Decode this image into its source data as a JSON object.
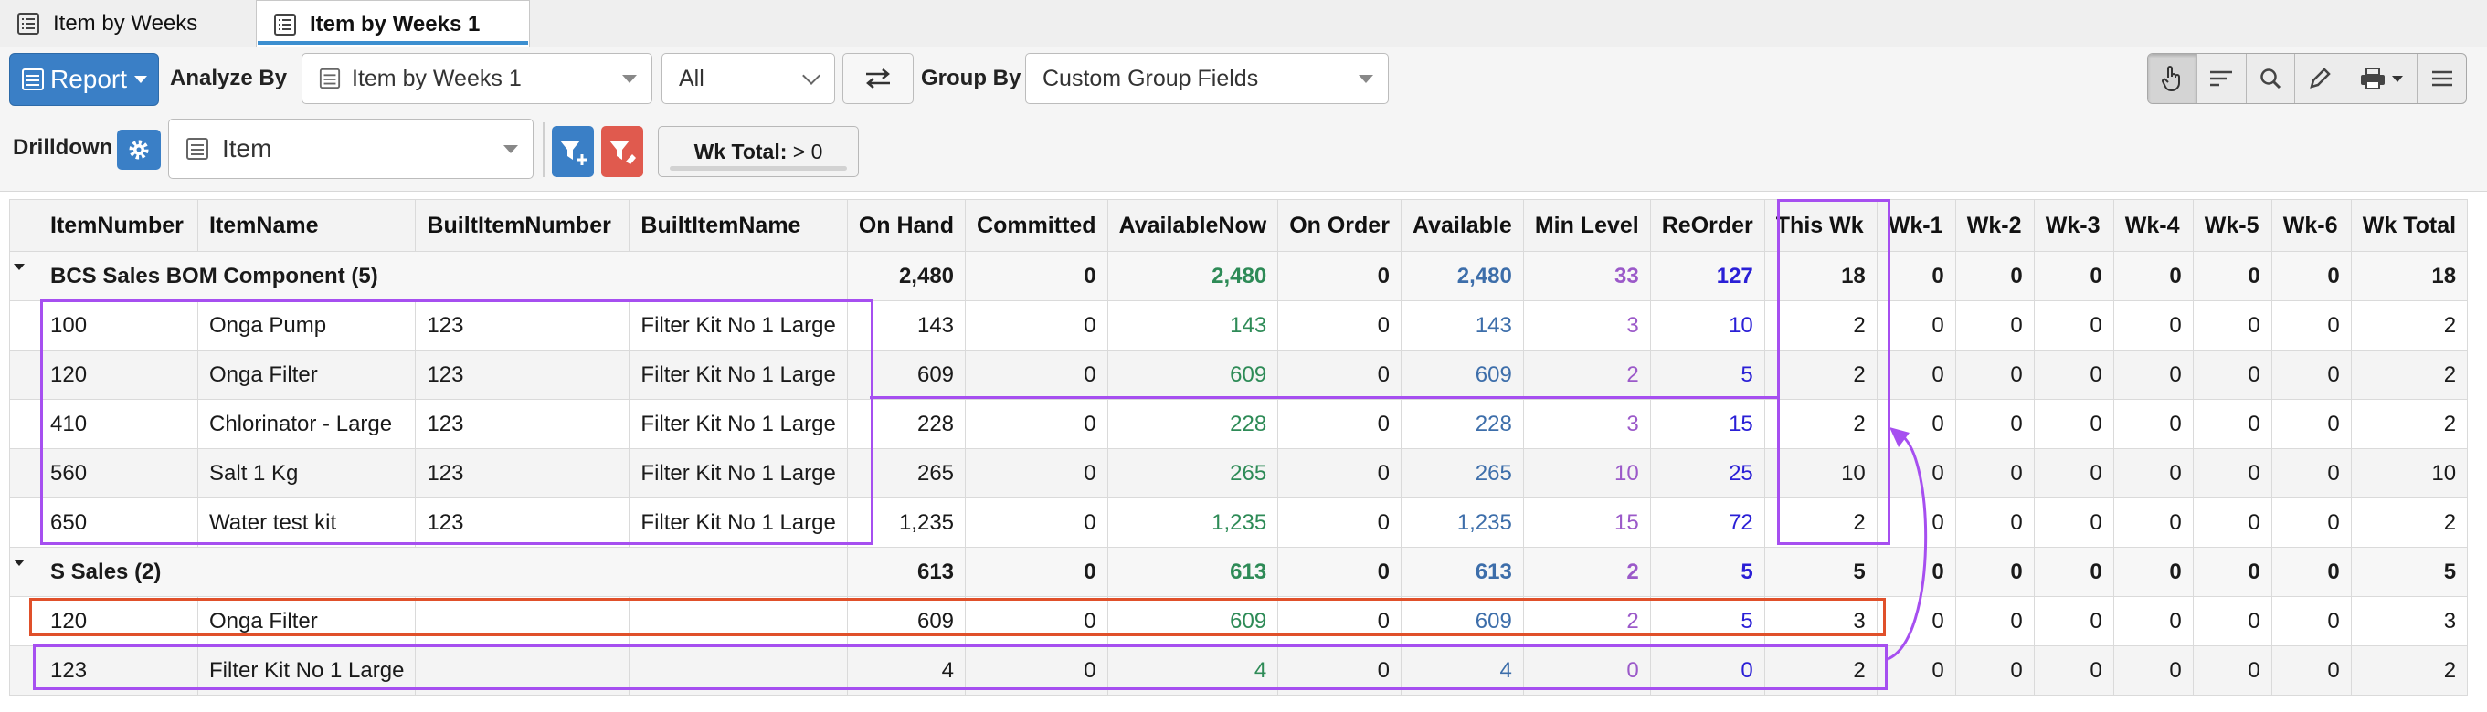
{
  "tabs": [
    {
      "label": "Item by Weeks",
      "active": false
    },
    {
      "label": "Item by Weeks 1",
      "active": true
    }
  ],
  "toolbar": {
    "report_label": "Report",
    "analyze_by_label": "Analyze By",
    "analyze_by_value": "Item by Weeks 1",
    "filter_value": "All",
    "group_by_label": "Group By",
    "group_by_value": "Custom Group Fields",
    "drilldown_label": "Drilldown",
    "drilldown_value": "Item",
    "wk_total_label": "Wk Total:",
    "wk_total_value": "> 0"
  },
  "table": {
    "columns": [
      "ItemNumber",
      "ItemName",
      "BuiltItemNumber",
      "BuiltItemName",
      "On Hand",
      "Committed",
      "AvailableNow",
      "On Order",
      "Available",
      "Min Level",
      "ReOrder",
      "This Wk",
      "Wk-1",
      "Wk-2",
      "Wk-3",
      "Wk-4",
      "Wk-5",
      "Wk-6",
      "Wk Total"
    ],
    "groups": [
      {
        "label": "BCS Sales BOM Component (5)",
        "totals": [
          "2,480",
          "0",
          "2,480",
          "0",
          "2,480",
          "33",
          "127",
          "18",
          "0",
          "0",
          "0",
          "0",
          "0",
          "0",
          "18"
        ],
        "rows": [
          [
            "100",
            "Onga Pump",
            "123",
            "Filter Kit No 1 Large",
            "143",
            "0",
            "143",
            "0",
            "143",
            "3",
            "10",
            "2",
            "0",
            "0",
            "0",
            "0",
            "0",
            "0",
            "2"
          ],
          [
            "120",
            "Onga Filter",
            "123",
            "Filter Kit No 1 Large",
            "609",
            "0",
            "609",
            "0",
            "609",
            "2",
            "5",
            "2",
            "0",
            "0",
            "0",
            "0",
            "0",
            "0",
            "2"
          ],
          [
            "410",
            "Chlorinator - Large",
            "123",
            "Filter Kit No 1 Large",
            "228",
            "0",
            "228",
            "0",
            "228",
            "3",
            "15",
            "2",
            "0",
            "0",
            "0",
            "0",
            "0",
            "0",
            "2"
          ],
          [
            "560",
            "Salt 1 Kg",
            "123",
            "Filter Kit No 1 Large",
            "265",
            "0",
            "265",
            "0",
            "265",
            "10",
            "25",
            "10",
            "0",
            "0",
            "0",
            "0",
            "0",
            "0",
            "10"
          ],
          [
            "650",
            "Water test kit",
            "123",
            "Filter Kit No 1 Large",
            "1,235",
            "0",
            "1,235",
            "0",
            "1,235",
            "15",
            "72",
            "2",
            "0",
            "0",
            "0",
            "0",
            "0",
            "0",
            "2"
          ]
        ]
      },
      {
        "label": "S Sales (2)",
        "totals": [
          "613",
          "0",
          "613",
          "0",
          "613",
          "2",
          "5",
          "5",
          "0",
          "0",
          "0",
          "0",
          "0",
          "0",
          "5"
        ],
        "rows": [
          [
            "120",
            "Onga Filter",
            "",
            "",
            "609",
            "0",
            "609",
            "0",
            "609",
            "2",
            "5",
            "3",
            "0",
            "0",
            "0",
            "0",
            "0",
            "0",
            "3"
          ],
          [
            "123",
            "Filter Kit No 1 Large",
            "",
            "",
            "4",
            "0",
            "4",
            "0",
            "4",
            "0",
            "0",
            "2",
            "0",
            "0",
            "0",
            "0",
            "0",
            "0",
            "2"
          ]
        ]
      }
    ]
  },
  "colors": {
    "accent": "#3a7fc6",
    "available_now": "#2e8b57",
    "available": "#3d6eaa",
    "min_level": "#9b59c9",
    "reorder": "#2a1fd6",
    "annotation_purple": "#a64ff0",
    "annotation_red": "#e0502a"
  }
}
